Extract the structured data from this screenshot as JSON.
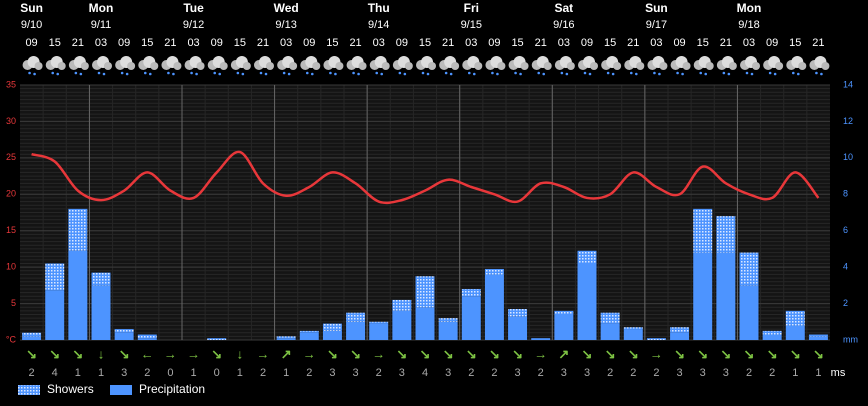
{
  "chart_data": {
    "type": "bar",
    "days": [
      {
        "name": "Sun",
        "date": "9/10",
        "hours": [
          "09",
          "15",
          "21"
        ]
      },
      {
        "name": "Mon",
        "date": "9/11",
        "hours": [
          "03",
          "09",
          "15",
          "21"
        ]
      },
      {
        "name": "Tue",
        "date": "9/12",
        "hours": [
          "03",
          "09",
          "15",
          "21"
        ]
      },
      {
        "name": "Wed",
        "date": "9/13",
        "hours": [
          "03",
          "09",
          "15",
          "21"
        ]
      },
      {
        "name": "Thu",
        "date": "9/14",
        "hours": [
          "03",
          "09",
          "15",
          "21"
        ]
      },
      {
        "name": "Fri",
        "date": "9/15",
        "hours": [
          "03",
          "09",
          "15",
          "21"
        ]
      },
      {
        "name": "Sat",
        "date": "9/16",
        "hours": [
          "03",
          "09",
          "15",
          "21"
        ]
      },
      {
        "name": "Sun",
        "date": "9/17",
        "hours": [
          "03",
          "09",
          "15",
          "21"
        ]
      },
      {
        "name": "Mon",
        "date": "9/18",
        "hours": [
          "03",
          "09",
          "15",
          "21"
        ]
      }
    ],
    "ylim": [
      0,
      35
    ],
    "yticks": [
      {
        "value": 0,
        "label": "°C"
      },
      5,
      10,
      15,
      20,
      25,
      30,
      35
    ],
    "y2lim": [
      0,
      14
    ],
    "y2ticks": [
      {
        "value": 0,
        "label": "mm"
      },
      2,
      4,
      6,
      8,
      10,
      12,
      14
    ],
    "grid": true,
    "series": [
      {
        "name": "Precipitation",
        "color": "#4d94ff",
        "axis": "y2",
        "values": [
          0.2,
          2.7,
          4.9,
          3.0,
          0.4,
          0.1,
          0,
          0,
          0,
          0,
          0,
          0.1,
          0.4,
          0.5,
          1.0,
          0.9,
          1.6,
          1.8,
          1.0,
          2.4,
          3.6,
          1.3,
          0.1,
          1.4,
          4.2,
          0.9,
          0.6,
          0,
          0.4,
          4.8,
          4.8,
          3.0,
          0.3,
          0.8,
          0.2
        ]
      },
      {
        "name": "Showers",
        "color": "#4d94ff",
        "axis": "y2",
        "values": [
          0.2,
          1.5,
          2.3,
          0.7,
          0.2,
          0.2,
          0,
          0,
          0.1,
          0,
          0,
          0.1,
          0.1,
          0.4,
          0.5,
          0.1,
          0.6,
          1.7,
          0.2,
          0.4,
          0.3,
          0.4,
          0,
          0.2,
          0.7,
          0.6,
          0.1,
          0.1,
          0.3,
          2.4,
          2.0,
          1.8,
          0.2,
          0.8,
          0.1
        ]
      },
      {
        "color": "#e8373a",
        "type": "line",
        "values": [
          25.5,
          24.5,
          20.5,
          19.2,
          20.5,
          23,
          20.5,
          19.5,
          23,
          25.8,
          21.5,
          19.8,
          21,
          23,
          21.5,
          19,
          19.2,
          20.5,
          22,
          21,
          20,
          19,
          21.5,
          21,
          19.5,
          20,
          23,
          21,
          20,
          23.8,
          21.5,
          20,
          19.5,
          23,
          19.5
        ]
      }
    ],
    "wind_direction": [
      "↘",
      "↘",
      "↘",
      "↓",
      "↘",
      "←",
      "→",
      "→",
      "↘",
      "↓",
      "→",
      "↗",
      "→",
      "↘",
      "↘",
      "→",
      "↘",
      "↘",
      "↘",
      "↘",
      "↘",
      "↘",
      "→",
      "↗",
      "↘",
      "↘",
      "↘",
      "→",
      "↘",
      "↘",
      "↘",
      "↘",
      "↘",
      "↘",
      "↘"
    ],
    "wind_speed": [
      2,
      4,
      1,
      1,
      3,
      2,
      0,
      1,
      0,
      1,
      2,
      1,
      2,
      3,
      3,
      2,
      3,
      4,
      3,
      2,
      2,
      3,
      2,
      3,
      3,
      2,
      2,
      2,
      3,
      3,
      3,
      2,
      2,
      1,
      1
    ],
    "wind_unit": "ms"
  }
}
